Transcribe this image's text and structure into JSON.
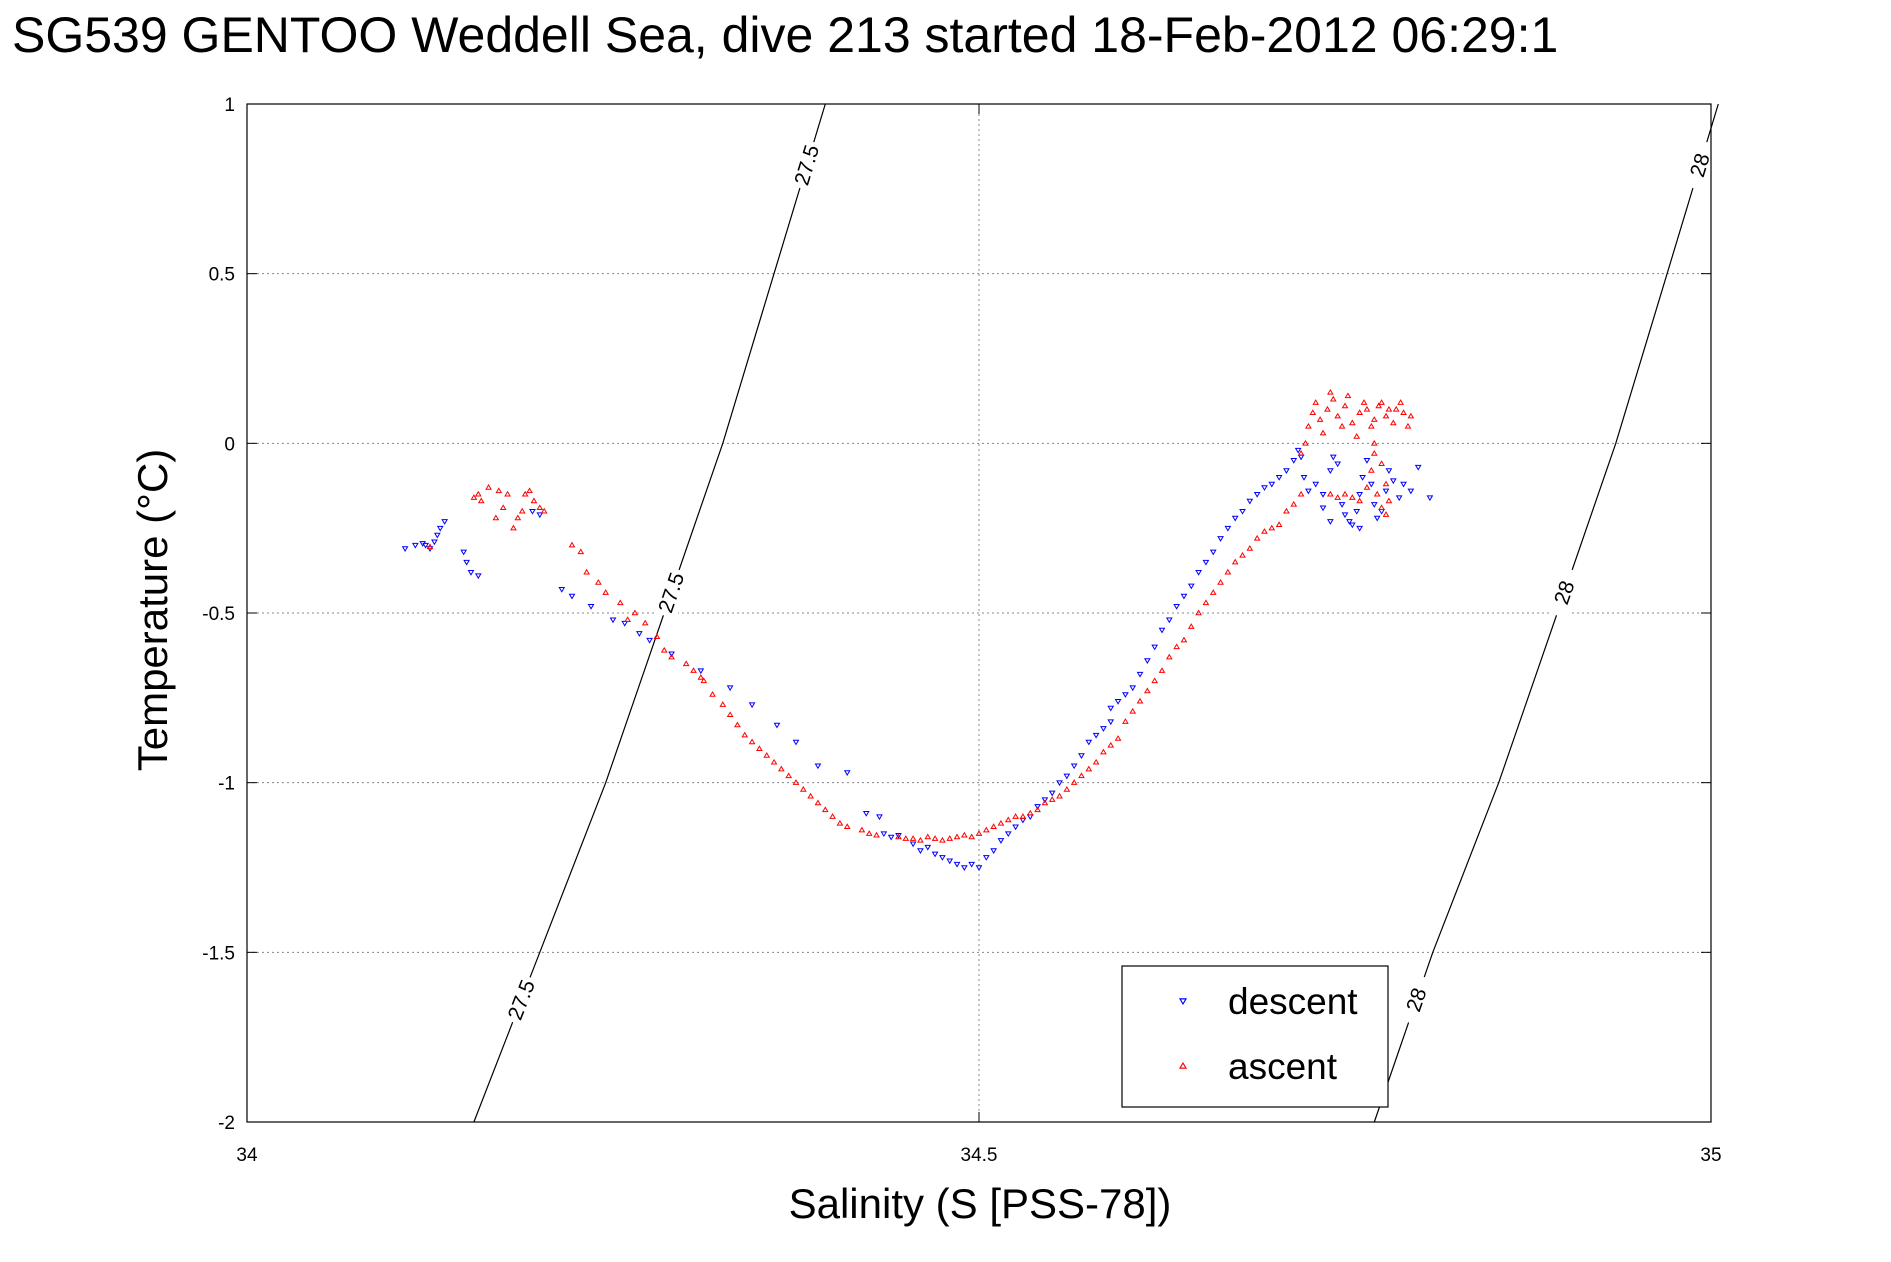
{
  "chart_data": {
    "type": "scatter",
    "title": "SG539 GENTOO Weddell Sea, dive 213 started 18-Feb-2012 06:29:1",
    "xlabel": "Salinity (S [PSS-78])",
    "ylabel": "Temperature (°C)",
    "xlim": [
      34,
      35
    ],
    "ylim": [
      -2,
      1
    ],
    "xticks": [
      "34",
      "34.5",
      "35"
    ],
    "yticks": [
      "-2",
      "-1.5",
      "-1",
      "-0.5",
      "0",
      "0.5",
      "1"
    ],
    "grid": true,
    "legend_position": "bottom-right-inside",
    "contours": [
      {
        "level": "27.5",
        "labels": [
          "27.5",
          "27.5",
          "27.5"
        ],
        "points": [
          [
            34.155,
            -2
          ],
          [
            34.2,
            -1.5
          ],
          [
            34.245,
            -1
          ],
          [
            34.285,
            -0.5
          ],
          [
            34.325,
            0
          ],
          [
            34.36,
            0.5
          ],
          [
            34.395,
            1
          ]
        ]
      },
      {
        "level": "28",
        "labels": [
          "28",
          "28",
          "28"
        ],
        "points": [
          [
            34.77,
            -2
          ],
          [
            34.81,
            -1.5
          ],
          [
            34.855,
            -1
          ],
          [
            34.895,
            -0.5
          ],
          [
            34.935,
            0
          ],
          [
            34.97,
            0.5
          ],
          [
            35.005,
            1
          ]
        ]
      }
    ],
    "series": [
      {
        "name": "descent",
        "color": "#0000ff",
        "marker": "triangle-down",
        "points": [
          [
            34.108,
            -0.31
          ],
          [
            34.115,
            -0.3
          ],
          [
            34.12,
            -0.295
          ],
          [
            34.122,
            -0.3
          ],
          [
            34.125,
            -0.31
          ],
          [
            34.128,
            -0.29
          ],
          [
            34.13,
            -0.27
          ],
          [
            34.132,
            -0.25
          ],
          [
            34.135,
            -0.23
          ],
          [
            34.148,
            -0.32
          ],
          [
            34.15,
            -0.35
          ],
          [
            34.153,
            -0.38
          ],
          [
            34.158,
            -0.39
          ],
          [
            34.195,
            -0.2
          ],
          [
            34.2,
            -0.21
          ],
          [
            34.215,
            -0.43
          ],
          [
            34.222,
            -0.45
          ],
          [
            34.235,
            -0.48
          ],
          [
            34.25,
            -0.52
          ],
          [
            34.258,
            -0.53
          ],
          [
            34.268,
            -0.56
          ],
          [
            34.275,
            -0.58
          ],
          [
            34.29,
            -0.62
          ],
          [
            34.31,
            -0.67
          ],
          [
            34.33,
            -0.72
          ],
          [
            34.345,
            -0.77
          ],
          [
            34.362,
            -0.83
          ],
          [
            34.375,
            -0.88
          ],
          [
            34.39,
            -0.95
          ],
          [
            34.41,
            -0.97
          ],
          [
            34.423,
            -1.09
          ],
          [
            34.432,
            -1.1
          ],
          [
            34.435,
            -1.15
          ],
          [
            34.44,
            -1.16
          ],
          [
            34.445,
            -1.155
          ],
          [
            34.455,
            -1.18
          ],
          [
            34.46,
            -1.2
          ],
          [
            34.465,
            -1.19
          ],
          [
            34.47,
            -1.21
          ],
          [
            34.475,
            -1.22
          ],
          [
            34.48,
            -1.23
          ],
          [
            34.485,
            -1.24
          ],
          [
            34.49,
            -1.25
          ],
          [
            34.495,
            -1.24
          ],
          [
            34.5,
            -1.25
          ],
          [
            34.505,
            -1.22
          ],
          [
            34.51,
            -1.2
          ],
          [
            34.515,
            -1.17
          ],
          [
            34.52,
            -1.15
          ],
          [
            34.525,
            -1.13
          ],
          [
            34.53,
            -1.11
          ],
          [
            34.535,
            -1.1
          ],
          [
            34.54,
            -1.07
          ],
          [
            34.545,
            -1.05
          ],
          [
            34.55,
            -1.03
          ],
          [
            34.555,
            -1.0
          ],
          [
            34.56,
            -0.98
          ],
          [
            34.565,
            -0.95
          ],
          [
            34.57,
            -0.92
          ],
          [
            34.575,
            -0.88
          ],
          [
            34.58,
            -0.86
          ],
          [
            34.585,
            -0.84
          ],
          [
            34.59,
            -0.82
          ],
          [
            34.59,
            -0.78
          ],
          [
            34.595,
            -0.76
          ],
          [
            34.6,
            -0.74
          ],
          [
            34.605,
            -0.72
          ],
          [
            34.61,
            -0.68
          ],
          [
            34.615,
            -0.64
          ],
          [
            34.62,
            -0.6
          ],
          [
            34.625,
            -0.55
          ],
          [
            34.63,
            -0.52
          ],
          [
            34.635,
            -0.48
          ],
          [
            34.64,
            -0.45
          ],
          [
            34.645,
            -0.42
          ],
          [
            34.65,
            -0.38
          ],
          [
            34.655,
            -0.35
          ],
          [
            34.66,
            -0.32
          ],
          [
            34.665,
            -0.28
          ],
          [
            34.67,
            -0.25
          ],
          [
            34.675,
            -0.22
          ],
          [
            34.68,
            -0.2
          ],
          [
            34.685,
            -0.17
          ],
          [
            34.69,
            -0.15
          ],
          [
            34.695,
            -0.13
          ],
          [
            34.7,
            -0.12
          ],
          [
            34.705,
            -0.1
          ],
          [
            34.71,
            -0.08
          ],
          [
            34.715,
            -0.05
          ],
          [
            34.718,
            -0.02
          ],
          [
            34.72,
            -0.04
          ],
          [
            34.722,
            -0.1
          ],
          [
            34.725,
            -0.14
          ],
          [
            34.73,
            -0.12
          ],
          [
            34.735,
            -0.15
          ],
          [
            34.74,
            -0.08
          ],
          [
            34.742,
            -0.04
          ],
          [
            34.745,
            -0.06
          ],
          [
            34.748,
            -0.18
          ],
          [
            34.75,
            -0.21
          ],
          [
            34.753,
            -0.23
          ],
          [
            34.755,
            -0.24
          ],
          [
            34.758,
            -0.2
          ],
          [
            34.76,
            -0.15
          ],
          [
            34.762,
            -0.1
          ],
          [
            34.765,
            -0.05
          ],
          [
            34.768,
            -0.12
          ],
          [
            34.77,
            -0.18
          ],
          [
            34.772,
            -0.22
          ],
          [
            34.775,
            -0.2
          ],
          [
            34.778,
            -0.14
          ],
          [
            34.78,
            -0.08
          ],
          [
            34.783,
            -0.11
          ],
          [
            34.787,
            -0.16
          ],
          [
            34.79,
            -0.12
          ],
          [
            34.795,
            -0.14
          ],
          [
            34.8,
            -0.07
          ],
          [
            34.808,
            -0.16
          ],
          [
            34.735,
            -0.19
          ],
          [
            34.74,
            -0.23
          ],
          [
            34.76,
            -0.25
          ]
        ]
      },
      {
        "name": "ascent",
        "color": "#ff0000",
        "marker": "triangle-up",
        "points": [
          [
            34.125,
            -0.305
          ],
          [
            34.155,
            -0.16
          ],
          [
            34.158,
            -0.15
          ],
          [
            34.16,
            -0.17
          ],
          [
            34.165,
            -0.13
          ],
          [
            34.17,
            -0.22
          ],
          [
            34.172,
            -0.14
          ],
          [
            34.175,
            -0.19
          ],
          [
            34.178,
            -0.15
          ],
          [
            34.182,
            -0.25
          ],
          [
            34.185,
            -0.22
          ],
          [
            34.188,
            -0.2
          ],
          [
            34.19,
            -0.15
          ],
          [
            34.193,
            -0.14
          ],
          [
            34.196,
            -0.17
          ],
          [
            34.2,
            -0.19
          ],
          [
            34.203,
            -0.2
          ],
          [
            34.222,
            -0.3
          ],
          [
            34.228,
            -0.32
          ],
          [
            34.232,
            -0.38
          ],
          [
            34.24,
            -0.41
          ],
          [
            34.245,
            -0.44
          ],
          [
            34.255,
            -0.47
          ],
          [
            34.26,
            -0.52
          ],
          [
            34.265,
            -0.5
          ],
          [
            34.272,
            -0.53
          ],
          [
            34.28,
            -0.57
          ],
          [
            34.285,
            -0.61
          ],
          [
            34.29,
            -0.63
          ],
          [
            34.3,
            -0.65
          ],
          [
            34.305,
            -0.67
          ],
          [
            34.31,
            -0.69
          ],
          [
            34.312,
            -0.7
          ],
          [
            34.318,
            -0.74
          ],
          [
            34.325,
            -0.77
          ],
          [
            34.33,
            -0.8
          ],
          [
            34.335,
            -0.83
          ],
          [
            34.34,
            -0.86
          ],
          [
            34.345,
            -0.88
          ],
          [
            34.35,
            -0.9
          ],
          [
            34.355,
            -0.92
          ],
          [
            34.36,
            -0.94
          ],
          [
            34.365,
            -0.96
          ],
          [
            34.37,
            -0.98
          ],
          [
            34.375,
            -1.0
          ],
          [
            34.38,
            -1.02
          ],
          [
            34.385,
            -1.04
          ],
          [
            34.39,
            -1.06
          ],
          [
            34.395,
            -1.08
          ],
          [
            34.4,
            -1.1
          ],
          [
            34.405,
            -1.12
          ],
          [
            34.41,
            -1.13
          ],
          [
            34.42,
            -1.14
          ],
          [
            34.425,
            -1.15
          ],
          [
            34.43,
            -1.155
          ],
          [
            34.445,
            -1.16
          ],
          [
            34.45,
            -1.165
          ],
          [
            34.455,
            -1.165
          ],
          [
            34.46,
            -1.17
          ],
          [
            34.465,
            -1.16
          ],
          [
            34.47,
            -1.165
          ],
          [
            34.475,
            -1.17
          ],
          [
            34.48,
            -1.165
          ],
          [
            34.485,
            -1.16
          ],
          [
            34.49,
            -1.155
          ],
          [
            34.495,
            -1.16
          ],
          [
            34.5,
            -1.15
          ],
          [
            34.505,
            -1.14
          ],
          [
            34.51,
            -1.13
          ],
          [
            34.515,
            -1.12
          ],
          [
            34.52,
            -1.11
          ],
          [
            34.525,
            -1.1
          ],
          [
            34.53,
            -1.1
          ],
          [
            34.535,
            -1.09
          ],
          [
            34.54,
            -1.08
          ],
          [
            34.545,
            -1.06
          ],
          [
            34.55,
            -1.05
          ],
          [
            34.555,
            -1.04
          ],
          [
            34.56,
            -1.02
          ],
          [
            34.565,
            -1.0
          ],
          [
            34.57,
            -0.98
          ],
          [
            34.575,
            -0.96
          ],
          [
            34.58,
            -0.94
          ],
          [
            34.585,
            -0.91
          ],
          [
            34.59,
            -0.89
          ],
          [
            34.595,
            -0.87
          ],
          [
            34.6,
            -0.82
          ],
          [
            34.605,
            -0.79
          ],
          [
            34.61,
            -0.76
          ],
          [
            34.615,
            -0.73
          ],
          [
            34.62,
            -0.7
          ],
          [
            34.625,
            -0.67
          ],
          [
            34.63,
            -0.63
          ],
          [
            34.635,
            -0.6
          ],
          [
            34.64,
            -0.58
          ],
          [
            34.645,
            -0.54
          ],
          [
            34.65,
            -0.5
          ],
          [
            34.655,
            -0.47
          ],
          [
            34.66,
            -0.44
          ],
          [
            34.665,
            -0.41
          ],
          [
            34.67,
            -0.38
          ],
          [
            34.675,
            -0.35
          ],
          [
            34.68,
            -0.33
          ],
          [
            34.685,
            -0.31
          ],
          [
            34.69,
            -0.28
          ],
          [
            34.695,
            -0.26
          ],
          [
            34.7,
            -0.25
          ],
          [
            34.705,
            -0.24
          ],
          [
            34.71,
            -0.2
          ],
          [
            34.715,
            -0.18
          ],
          [
            34.72,
            -0.15
          ],
          [
            34.72,
            -0.03
          ],
          [
            34.723,
            0.0
          ],
          [
            34.725,
            0.05
          ],
          [
            34.728,
            0.09
          ],
          [
            34.73,
            0.12
          ],
          [
            34.733,
            0.07
          ],
          [
            34.735,
            0.03
          ],
          [
            34.738,
            0.1
          ],
          [
            34.74,
            0.15
          ],
          [
            34.742,
            0.13
          ],
          [
            34.745,
            0.08
          ],
          [
            34.748,
            0.05
          ],
          [
            34.75,
            0.11
          ],
          [
            34.752,
            0.14
          ],
          [
            34.755,
            0.06
          ],
          [
            34.758,
            0.02
          ],
          [
            34.76,
            0.09
          ],
          [
            34.763,
            0.12
          ],
          [
            34.765,
            0.1
          ],
          [
            34.768,
            0.05
          ],
          [
            34.77,
            0.07
          ],
          [
            34.773,
            0.11
          ],
          [
            34.775,
            0.12
          ],
          [
            34.778,
            0.08
          ],
          [
            34.78,
            0.1
          ],
          [
            34.783,
            0.06
          ],
          [
            34.785,
            0.1
          ],
          [
            34.788,
            0.12
          ],
          [
            34.79,
            0.09
          ],
          [
            34.793,
            0.05
          ],
          [
            34.795,
            0.08
          ],
          [
            34.74,
            -0.15
          ],
          [
            34.745,
            -0.16
          ],
          [
            34.75,
            -0.15
          ],
          [
            34.755,
            -0.16
          ],
          [
            34.76,
            -0.17
          ],
          [
            34.765,
            -0.13
          ],
          [
            34.768,
            -0.08
          ],
          [
            34.77,
            -0.03
          ],
          [
            34.772,
            -0.15
          ],
          [
            34.775,
            -0.19
          ],
          [
            34.778,
            -0.21
          ],
          [
            34.78,
            -0.17
          ],
          [
            34.778,
            -0.12
          ],
          [
            34.775,
            -0.06
          ],
          [
            34.77,
            0.0
          ]
        ]
      }
    ]
  }
}
